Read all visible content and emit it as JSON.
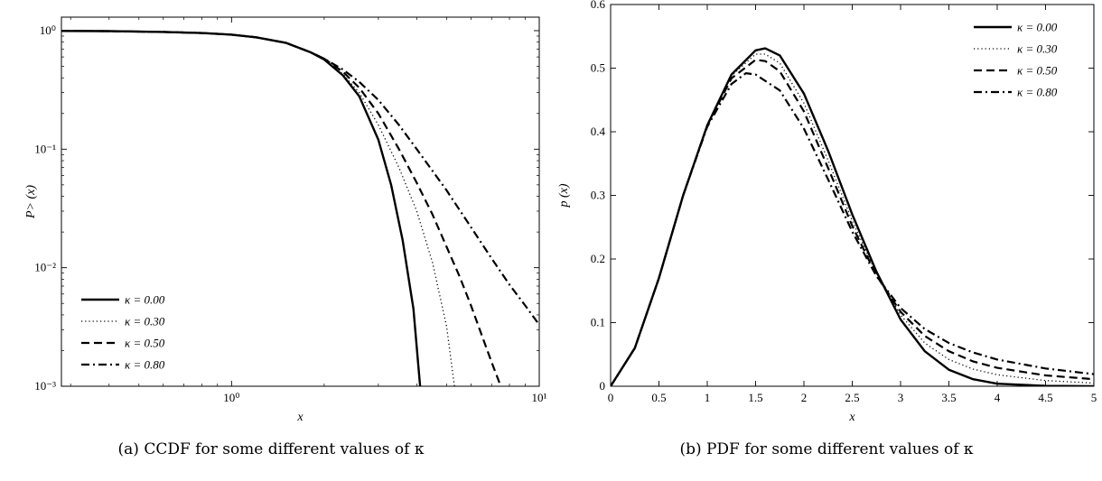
{
  "chart_data": [
    {
      "id": "a",
      "type": "line",
      "caption": "(a)  CCDF for some different values of κ",
      "xlabel": "x",
      "ylabel": "P> (x)",
      "xscale": "log",
      "yscale": "log",
      "xlim": [
        0.28,
        10
      ],
      "ylim": [
        0.001,
        1.3
      ],
      "xticks": [
        {
          "value": 1,
          "label": "10⁰"
        },
        {
          "value": 10,
          "label": "10¹"
        }
      ],
      "yticks": [
        {
          "value": 0.001,
          "label": "10⁻³"
        },
        {
          "value": 0.01,
          "label": "10⁻²"
        },
        {
          "value": 0.1,
          "label": "10⁻¹"
        },
        {
          "value": 1,
          "label": "10⁰"
        }
      ],
      "legend_position": "bottom-left",
      "series": [
        {
          "name": "κ = 0.00",
          "style": "solid",
          "x": [
            0.28,
            0.4,
            0.6,
            0.8,
            1.0,
            1.2,
            1.5,
            1.8,
            2.0,
            2.3,
            2.6,
            3.0,
            3.3,
            3.6,
            3.9,
            4.1
          ],
          "y": [
            0.995,
            0.99,
            0.975,
            0.955,
            0.925,
            0.88,
            0.79,
            0.66,
            0.57,
            0.42,
            0.28,
            0.12,
            0.05,
            0.017,
            0.0045,
            0.001
          ]
        },
        {
          "name": "κ = 0.30",
          "style": "dotted",
          "x": [
            0.28,
            0.4,
            0.6,
            0.8,
            1.0,
            1.2,
            1.5,
            1.8,
            2.0,
            2.3,
            2.6,
            3.0,
            3.5,
            4.0,
            4.5,
            5.0,
            5.3
          ],
          "y": [
            0.995,
            0.99,
            0.975,
            0.955,
            0.925,
            0.88,
            0.79,
            0.66,
            0.57,
            0.43,
            0.3,
            0.16,
            0.07,
            0.03,
            0.011,
            0.0032,
            0.001
          ]
        },
        {
          "name": "κ = 0.50",
          "style": "dashed",
          "x": [
            0.28,
            0.4,
            0.6,
            0.8,
            1.0,
            1.2,
            1.5,
            1.8,
            2.0,
            2.3,
            2.6,
            3.0,
            3.5,
            4.0,
            4.5,
            5.0,
            5.5,
            6.0,
            6.5,
            7.0,
            7.5
          ],
          "y": [
            0.995,
            0.99,
            0.975,
            0.955,
            0.925,
            0.88,
            0.79,
            0.66,
            0.58,
            0.45,
            0.33,
            0.2,
            0.1,
            0.052,
            0.028,
            0.015,
            0.0085,
            0.0048,
            0.0027,
            0.0016,
            0.001
          ]
        },
        {
          "name": "κ = 0.80",
          "style": "dashdot",
          "x": [
            0.28,
            0.4,
            0.6,
            0.8,
            1.0,
            1.2,
            1.5,
            1.8,
            2.0,
            2.3,
            2.6,
            3.0,
            3.5,
            4.0,
            5.0,
            6.0,
            7.0,
            8.0,
            9.0,
            10.0
          ],
          "y": [
            0.995,
            0.99,
            0.975,
            0.955,
            0.925,
            0.88,
            0.79,
            0.66,
            0.58,
            0.47,
            0.37,
            0.26,
            0.16,
            0.1,
            0.045,
            0.022,
            0.012,
            0.0072,
            0.0048,
            0.0033
          ]
        }
      ]
    },
    {
      "id": "b",
      "type": "line",
      "caption": "(b)  PDF for some different values of κ",
      "xlabel": "x",
      "ylabel": "p (x)",
      "xscale": "linear",
      "yscale": "linear",
      "xlim": [
        0,
        5
      ],
      "ylim": [
        0,
        0.6
      ],
      "xticks": [
        {
          "value": 0,
          "label": "0"
        },
        {
          "value": 0.5,
          "label": "0.5"
        },
        {
          "value": 1,
          "label": "1"
        },
        {
          "value": 1.5,
          "label": "1.5"
        },
        {
          "value": 2,
          "label": "2"
        },
        {
          "value": 2.5,
          "label": "2.5"
        },
        {
          "value": 3,
          "label": "3"
        },
        {
          "value": 3.5,
          "label": "3.5"
        },
        {
          "value": 4,
          "label": "4"
        },
        {
          "value": 4.5,
          "label": "4.5"
        },
        {
          "value": 5,
          "label": "5"
        }
      ],
      "yticks": [
        {
          "value": 0,
          "label": "0"
        },
        {
          "value": 0.1,
          "label": "0.1"
        },
        {
          "value": 0.2,
          "label": "0.2"
        },
        {
          "value": 0.3,
          "label": "0.3"
        },
        {
          "value": 0.4,
          "label": "0.4"
        },
        {
          "value": 0.5,
          "label": "0.5"
        },
        {
          "value": 0.6,
          "label": "0.6"
        }
      ],
      "legend_position": "top-right",
      "series": [
        {
          "name": "κ = 0.00",
          "style": "solid",
          "x": [
            0,
            0.25,
            0.5,
            0.75,
            1.0,
            1.25,
            1.5,
            1.6,
            1.75,
            2.0,
            2.25,
            2.5,
            2.75,
            3.0,
            3.25,
            3.5,
            3.75,
            4.0,
            4.5,
            5.0
          ],
          "y": [
            0,
            0.06,
            0.17,
            0.3,
            0.41,
            0.49,
            0.528,
            0.531,
            0.52,
            0.46,
            0.37,
            0.27,
            0.18,
            0.105,
            0.055,
            0.026,
            0.011,
            0.004,
            0.0005,
            0.0
          ]
        },
        {
          "name": "κ = 0.30",
          "style": "dotted",
          "x": [
            0,
            0.25,
            0.5,
            0.75,
            1.0,
            1.25,
            1.5,
            1.6,
            1.75,
            2.0,
            2.25,
            2.5,
            2.75,
            3.0,
            3.25,
            3.5,
            3.75,
            4.0,
            4.5,
            5.0
          ],
          "y": [
            0,
            0.06,
            0.17,
            0.3,
            0.41,
            0.488,
            0.522,
            0.522,
            0.508,
            0.445,
            0.355,
            0.26,
            0.177,
            0.112,
            0.068,
            0.042,
            0.027,
            0.018,
            0.009,
            0.005
          ]
        },
        {
          "name": "κ = 0.50",
          "style": "dashed",
          "x": [
            0,
            0.25,
            0.5,
            0.75,
            1.0,
            1.25,
            1.5,
            1.6,
            1.75,
            2.0,
            2.25,
            2.5,
            2.75,
            3.0,
            3.25,
            3.5,
            3.75,
            4.0,
            4.5,
            5.0
          ],
          "y": [
            0,
            0.06,
            0.17,
            0.3,
            0.41,
            0.484,
            0.513,
            0.511,
            0.495,
            0.432,
            0.343,
            0.252,
            0.174,
            0.117,
            0.079,
            0.055,
            0.039,
            0.029,
            0.017,
            0.011
          ]
        },
        {
          "name": "κ = 0.80",
          "style": "dashdot",
          "x": [
            0,
            0.25,
            0.5,
            0.75,
            1.0,
            1.25,
            1.4,
            1.5,
            1.75,
            2.0,
            2.25,
            2.5,
            2.75,
            3.0,
            3.25,
            3.5,
            3.75,
            4.0,
            4.5,
            5.0
          ],
          "y": [
            0,
            0.06,
            0.17,
            0.3,
            0.408,
            0.475,
            0.492,
            0.49,
            0.465,
            0.405,
            0.325,
            0.243,
            0.173,
            0.123,
            0.09,
            0.068,
            0.053,
            0.042,
            0.028,
            0.019
          ]
        }
      ]
    }
  ]
}
